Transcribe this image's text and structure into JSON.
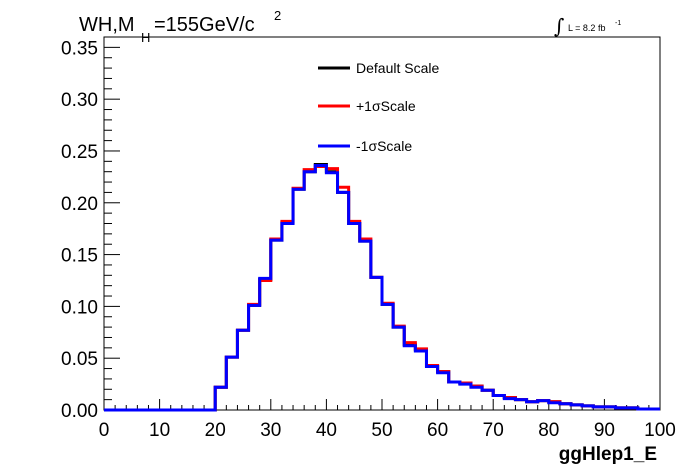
{
  "title": {
    "prefix": "WH,M",
    "subscript": "H",
    "value": "=155GeV/c",
    "superscript": "2"
  },
  "lumi": {
    "integral": "∫",
    "text": "L = 8.2 fb",
    "superscript": "-1"
  },
  "chart_data": {
    "type": "line",
    "xlabel": "ggHlep1_E",
    "ylabel": "",
    "xlim": [
      0,
      100
    ],
    "ylim": [
      0,
      0.36
    ],
    "grid": false,
    "legend_position": "top-center",
    "x_ticks": [
      "0",
      "10",
      "20",
      "30",
      "40",
      "50",
      "60",
      "70",
      "80",
      "90",
      "100"
    ],
    "y_ticks": [
      "0.00",
      "0.05",
      "0.10",
      "0.15",
      "0.20",
      "0.25",
      "0.30",
      "0.35"
    ],
    "bin_edges": [
      0,
      2,
      4,
      6,
      8,
      10,
      12,
      14,
      16,
      18,
      20,
      22,
      24,
      26,
      28,
      30,
      32,
      34,
      36,
      38,
      40,
      42,
      44,
      46,
      48,
      50,
      52,
      54,
      56,
      58,
      60,
      62,
      64,
      66,
      68,
      70,
      72,
      74,
      76,
      78,
      80,
      82,
      84,
      86,
      88,
      90,
      92,
      94,
      96,
      98,
      100
    ],
    "series": [
      {
        "name": "Default Scale",
        "color": "#000000",
        "values": [
          0,
          0,
          0,
          0,
          0,
          0,
          0,
          0,
          0,
          0,
          0.022,
          0.051,
          0.077,
          0.101,
          0.126,
          0.164,
          0.181,
          0.213,
          0.23,
          0.237,
          0.23,
          0.21,
          0.18,
          0.163,
          0.128,
          0.102,
          0.08,
          0.063,
          0.058,
          0.042,
          0.037,
          0.027,
          0.026,
          0.023,
          0.019,
          0.014,
          0.012,
          0.01,
          0.008,
          0.009,
          0.008,
          0.006,
          0.005,
          0.004,
          0.003,
          0.003,
          0.002,
          0.002,
          0.001,
          0.001
        ]
      },
      {
        "name": "+1σScale",
        "color": "#ff0000",
        "values": [
          0,
          0,
          0,
          0,
          0,
          0,
          0,
          0,
          0,
          0,
          0.022,
          0.051,
          0.077,
          0.102,
          0.125,
          0.165,
          0.182,
          0.214,
          0.232,
          0.235,
          0.233,
          0.215,
          0.182,
          0.165,
          0.128,
          0.103,
          0.081,
          0.065,
          0.059,
          0.043,
          0.037,
          0.027,
          0.026,
          0.023,
          0.019,
          0.014,
          0.012,
          0.01,
          0.008,
          0.009,
          0.008,
          0.006,
          0.005,
          0.004,
          0.003,
          0.003,
          0.002,
          0.002,
          0.001,
          0.001
        ]
      },
      {
        "name": "-1σScale",
        "color": "#0000ff",
        "values": [
          0,
          0,
          0,
          0,
          0,
          0,
          0,
          0,
          0,
          0,
          0.022,
          0.051,
          0.077,
          0.101,
          0.127,
          0.164,
          0.18,
          0.213,
          0.23,
          0.236,
          0.229,
          0.21,
          0.18,
          0.163,
          0.128,
          0.102,
          0.08,
          0.062,
          0.057,
          0.042,
          0.036,
          0.027,
          0.025,
          0.022,
          0.019,
          0.014,
          0.011,
          0.01,
          0.008,
          0.009,
          0.007,
          0.006,
          0.005,
          0.004,
          0.003,
          0.003,
          0.002,
          0.002,
          0.001,
          0.001
        ]
      }
    ]
  }
}
